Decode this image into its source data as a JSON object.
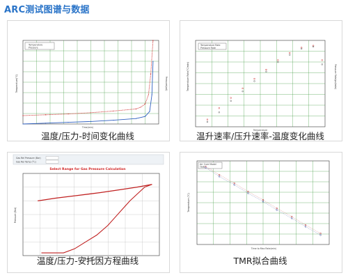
{
  "page": {
    "title": "ARC测试图谱与数据"
  },
  "panels": [
    {
      "id": "p1",
      "caption": "温度/压力-时间变化曲线",
      "legend": [
        "Temperature",
        "Pressure"
      ],
      "xlabel": "Time(min)",
      "ylabel_left": "Temperature(°C)",
      "ylabel_right": "Pressure(psi)",
      "colors": {
        "temperature": "#d03030",
        "pressure": "#3060c0"
      }
    },
    {
      "id": "p2",
      "caption": "温升速率/压升速率-温度变化曲线",
      "legend": [
        "Temperature Rate",
        "Pressure Rate"
      ],
      "xlabel": "Temperature",
      "ylabel_left": "Temperature Rate(°C/min)",
      "ylabel_right": "Pressure Rate(psi/min)",
      "colors": {
        "temperature": "#d03030",
        "pressure": "#555555"
      }
    },
    {
      "id": "p3",
      "caption": "温度/压力-安托因方程曲线",
      "legend": [
        "Gas Rel Pressure (Bar)",
        "Gas Rel Temp (°C)"
      ],
      "plot_title": "Select Range for Gas Pressure Calculation",
      "xlabel": "Temperature (K)",
      "ylabel_left": "Pressure (Bar)",
      "colors": {
        "title": "#d02020",
        "curve": "#c02020"
      }
    },
    {
      "id": "p4",
      "caption": "TMR拟合曲线",
      "legend": [
        "Arr Cure Model",
        "TMR"
      ],
      "xlabel": "Time to Max Rate(min)",
      "ylabel_left": "Temperature (°C)",
      "colors": {
        "a": "#c04040",
        "b": "#4050a0"
      }
    }
  ],
  "chart_data": [
    {
      "type": "line",
      "title": "",
      "series": [
        {
          "name": "Temperature",
          "x": [
            0,
            100,
            200,
            300,
            400,
            500,
            520,
            540,
            555,
            565,
            575
          ],
          "y": [
            20,
            22,
            24,
            27,
            31,
            36,
            40,
            48,
            70,
            120,
            200
          ]
        },
        {
          "name": "Pressure",
          "x": [
            0,
            100,
            200,
            300,
            400,
            500,
            540,
            560,
            570,
            575
          ],
          "y": [
            0,
            2,
            4,
            6,
            9,
            13,
            18,
            30,
            70,
            150
          ]
        }
      ],
      "xlim": [
        0,
        600
      ],
      "ylim": [
        0,
        200
      ],
      "grid": true
    },
    {
      "type": "scatter",
      "title": "",
      "series": [
        {
          "name": "Temperature Rate",
          "x": [
            20,
            40,
            60,
            80,
            100,
            120,
            140,
            160,
            180,
            200,
            215
          ],
          "y": [
            0.01,
            0.03,
            0.08,
            0.2,
            0.5,
            1.2,
            3,
            6,
            10,
            12,
            3
          ]
        },
        {
          "name": "Pressure Rate",
          "x": [
            20,
            40,
            60,
            80,
            100,
            120,
            140,
            160,
            180,
            200,
            215
          ],
          "y": [
            0.008,
            0.02,
            0.06,
            0.15,
            0.4,
            1.0,
            2.5,
            5,
            9,
            11,
            2
          ]
        }
      ],
      "xlim": [
        0,
        220
      ],
      "grid": true
    },
    {
      "type": "line",
      "title": "Select Range for Gas Pressure Calculation",
      "series": [
        {
          "name": "Upper",
          "x": [
            290,
            340,
            400,
            460,
            510,
            560,
            600
          ],
          "y": [
            40,
            42,
            44,
            46,
            48,
            50,
            52
          ]
        },
        {
          "name": "Lower",
          "x": [
            300,
            360,
            390,
            420,
            450,
            480,
            500,
            520,
            540,
            560,
            580,
            600
          ],
          "y": [
            2,
            2,
            5,
            10,
            15,
            22,
            28,
            34,
            40,
            45,
            50,
            52
          ]
        }
      ],
      "xlim": [
        250,
        620
      ],
      "ylim": [
        0,
        60
      ],
      "grid": true
    },
    {
      "type": "scatter",
      "title": "",
      "series": [
        {
          "name": "Arr Cure Model",
          "x": [
            0.01,
            0.03,
            0.1,
            0.3,
            1,
            3,
            10,
            30,
            100
          ],
          "y": [
            230,
            215,
            200,
            185,
            170,
            155,
            140,
            125,
            110
          ]
        },
        {
          "name": "TMR",
          "x": [
            0.01,
            0.03,
            0.1,
            0.3,
            1,
            3,
            10,
            30,
            100
          ],
          "y": [
            228,
            212,
            197,
            182,
            167,
            152,
            137,
            122,
            107
          ]
        }
      ],
      "xscale": "log",
      "ylim": [
        90,
        240
      ],
      "grid": true
    }
  ]
}
